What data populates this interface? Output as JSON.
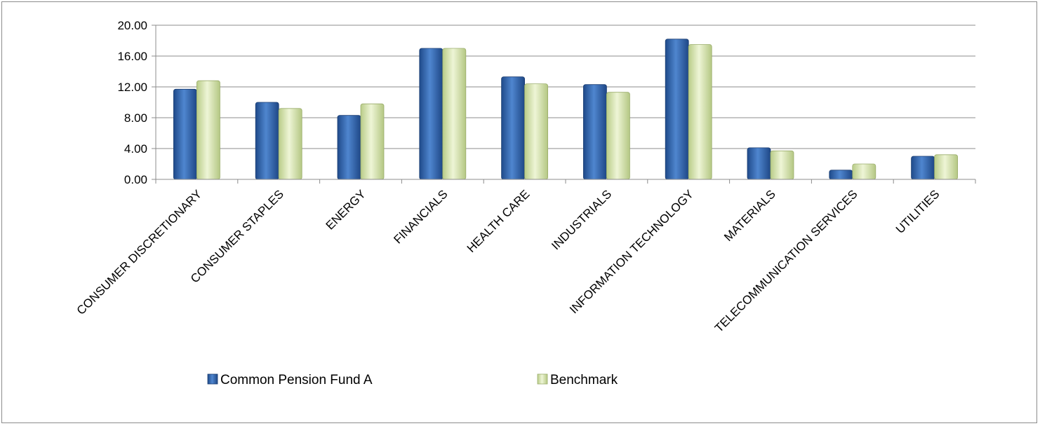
{
  "chart_data": {
    "type": "bar",
    "categories": [
      "CONSUMER DISCRETIONARY",
      "CONSUMER STAPLES",
      "ENERGY",
      "FINANCIALS",
      "HEALTH CARE",
      "INDUSTRIALS",
      "INFORMATION TECHNOLOGY",
      "MATERIALS",
      "TELECOMMUNICATION SERVICES",
      "UTILITIES"
    ],
    "series": [
      {
        "name": "Common Pension Fund A",
        "values": [
          11.7,
          10.0,
          8.3,
          17.0,
          13.3,
          12.3,
          18.2,
          4.1,
          1.2,
          3.0
        ]
      },
      {
        "name": "Benchmark",
        "values": [
          12.8,
          9.2,
          9.8,
          17.0,
          12.4,
          11.3,
          17.5,
          3.7,
          2.0,
          3.2
        ]
      }
    ],
    "yticks": [
      "0.00",
      "4.00",
      "8.00",
      "12.00",
      "16.00",
      "20.00"
    ],
    "ylim": [
      0,
      20
    ],
    "grid": true,
    "legend": "bottom",
    "colors": {
      "Common Pension Fund A": "#3a6fb5",
      "Benchmark": "#d3e3a6"
    }
  }
}
